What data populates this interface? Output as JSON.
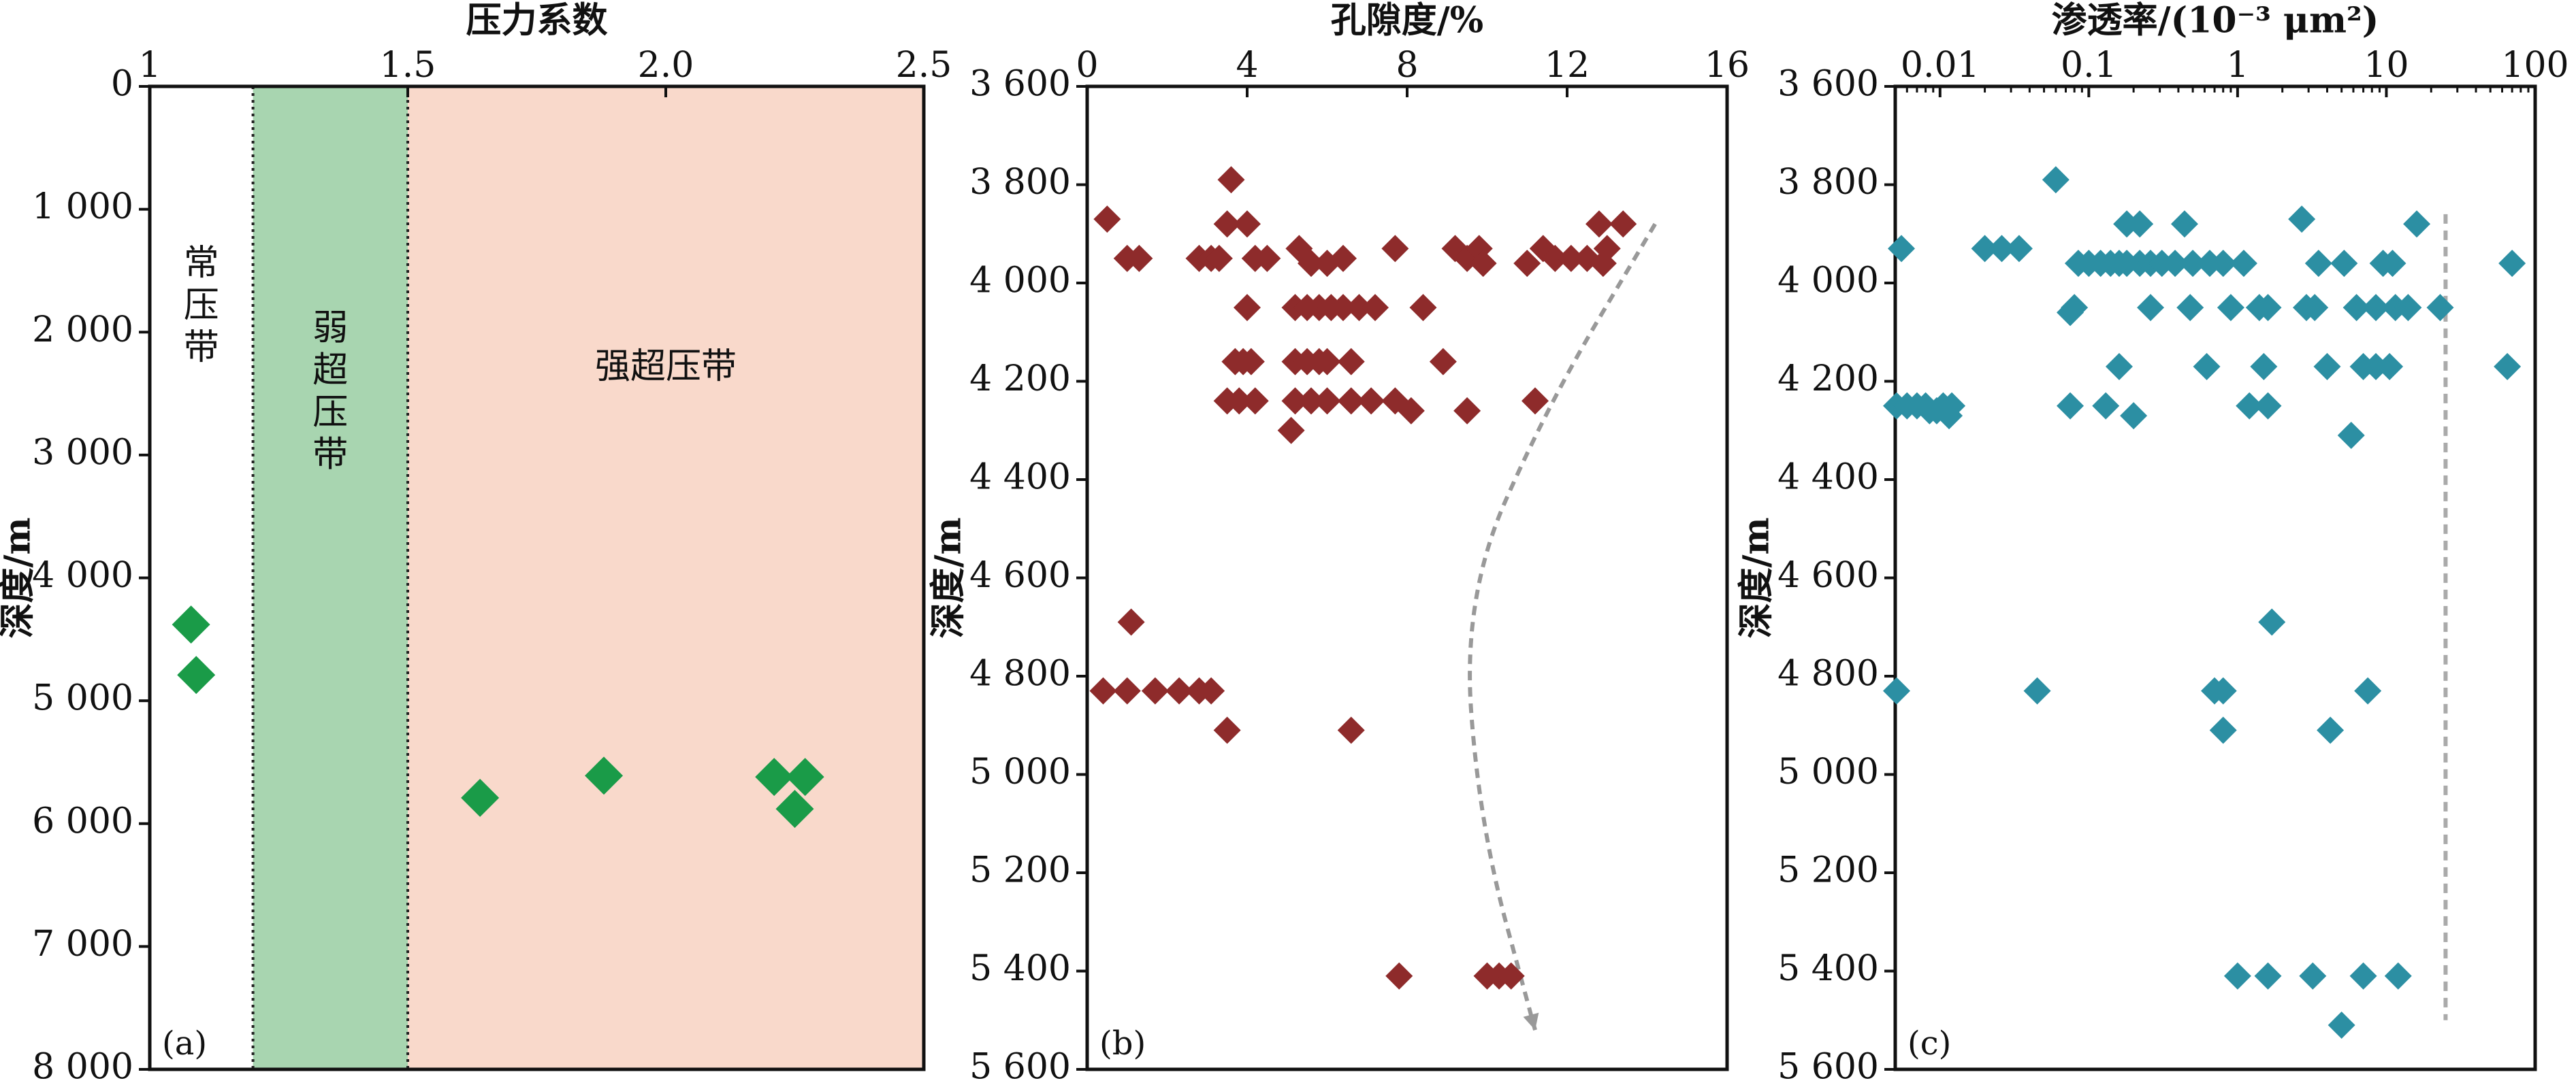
{
  "chart_data": [
    {
      "panel": "(a)",
      "type": "scatter",
      "title": "压力系数",
      "xlabel": "压力系数",
      "ylabel": "深度/m",
      "xlim": [
        1,
        2.5
      ],
      "ylim": [
        0,
        8000
      ],
      "y_inverted": true,
      "x_axis_position": "top",
      "x_ticks": [
        1,
        1.5,
        2.0,
        2.5
      ],
      "x_tick_labels": [
        "1",
        "1.5",
        "2.0",
        "2.5"
      ],
      "y_ticks": [
        0,
        1000,
        2000,
        3000,
        4000,
        5000,
        6000,
        7000,
        8000
      ],
      "y_tick_labels": [
        "0",
        "1 000",
        "2 000",
        "3 000",
        "4 000",
        "5 000",
        "6 000",
        "7 000",
        "8 000"
      ],
      "zones": [
        {
          "label": "常压带",
          "x_range": [
            1.0,
            1.2
          ],
          "color": "#ffffff"
        },
        {
          "label": "弱超压带",
          "x_range": [
            1.2,
            1.5
          ],
          "color": "#a8d5b0"
        },
        {
          "label": "强超压带",
          "x_range": [
            1.5,
            2.5
          ],
          "color": "#f9d9cb"
        }
      ],
      "marker_color": "#1a9b48",
      "marker": "diamond",
      "points": [
        {
          "x": 1.08,
          "y": 4380
        },
        {
          "x": 1.09,
          "y": 4790
        },
        {
          "x": 1.64,
          "y": 5790
        },
        {
          "x": 1.88,
          "y": 5610
        },
        {
          "x": 2.21,
          "y": 5620
        },
        {
          "x": 2.27,
          "y": 5620
        },
        {
          "x": 2.25,
          "y": 5880
        }
      ],
      "panel_label": "(a)"
    },
    {
      "panel": "(b)",
      "type": "scatter",
      "title": "孔隙度/%",
      "xlabel": "孔隙度/%",
      "ylabel": "深度/m",
      "xlim": [
        0,
        16
      ],
      "ylim": [
        3600,
        5600
      ],
      "y_inverted": true,
      "x_axis_position": "top",
      "x_ticks": [
        0,
        4,
        8,
        12,
        16
      ],
      "x_tick_labels": [
        "0",
        "4",
        "8",
        "12",
        "16"
      ],
      "y_ticks": [
        3600,
        3800,
        4000,
        4200,
        4400,
        4600,
        4800,
        5000,
        5200,
        5400,
        5600
      ],
      "y_tick_labels": [
        "3 600",
        "3 800",
        "4 000",
        "4 200",
        "4 400",
        "4 600",
        "4 800",
        "5 000",
        "5 200",
        "5 400",
        "5 600"
      ],
      "marker_color": "#8e2b2b",
      "marker": "diamond",
      "trend_line": {
        "style": "dashed-arrow",
        "color": "#999999",
        "points": [
          [
            14.2,
            3880
          ],
          [
            11.5,
            4250
          ],
          [
            9.4,
            4640
          ],
          [
            9.8,
            5100
          ],
          [
            11.2,
            5520
          ]
        ]
      },
      "points": [
        {
          "x": 0.5,
          "y": 3870
        },
        {
          "x": 1.0,
          "y": 3950
        },
        {
          "x": 1.3,
          "y": 3950
        },
        {
          "x": 2.8,
          "y": 3950
        },
        {
          "x": 3.1,
          "y": 3950
        },
        {
          "x": 3.3,
          "y": 3950
        },
        {
          "x": 3.6,
          "y": 3790
        },
        {
          "x": 3.5,
          "y": 3880
        },
        {
          "x": 4.0,
          "y": 3880
        },
        {
          "x": 4.2,
          "y": 3950
        },
        {
          "x": 4.5,
          "y": 3950
        },
        {
          "x": 5.3,
          "y": 3930
        },
        {
          "x": 5.6,
          "y": 3960
        },
        {
          "x": 6.0,
          "y": 3960
        },
        {
          "x": 6.4,
          "y": 3950
        },
        {
          "x": 7.7,
          "y": 3930
        },
        {
          "x": 9.2,
          "y": 3930
        },
        {
          "x": 9.5,
          "y": 3950
        },
        {
          "x": 9.8,
          "y": 3930
        },
        {
          "x": 9.9,
          "y": 3960
        },
        {
          "x": 11.0,
          "y": 3960
        },
        {
          "x": 11.4,
          "y": 3930
        },
        {
          "x": 11.7,
          "y": 3950
        },
        {
          "x": 12.1,
          "y": 3950
        },
        {
          "x": 12.5,
          "y": 3950
        },
        {
          "x": 12.9,
          "y": 3960
        },
        {
          "x": 12.8,
          "y": 3880
        },
        {
          "x": 13.0,
          "y": 3930
        },
        {
          "x": 13.4,
          "y": 3880
        },
        {
          "x": 4.0,
          "y": 4050
        },
        {
          "x": 5.2,
          "y": 4050
        },
        {
          "x": 5.5,
          "y": 4050
        },
        {
          "x": 5.8,
          "y": 4050
        },
        {
          "x": 6.1,
          "y": 4050
        },
        {
          "x": 6.4,
          "y": 4050
        },
        {
          "x": 6.8,
          "y": 4050
        },
        {
          "x": 7.2,
          "y": 4050
        },
        {
          "x": 8.4,
          "y": 4050
        },
        {
          "x": 3.7,
          "y": 4160
        },
        {
          "x": 3.9,
          "y": 4160
        },
        {
          "x": 4.1,
          "y": 4160
        },
        {
          "x": 5.2,
          "y": 4160
        },
        {
          "x": 5.5,
          "y": 4160
        },
        {
          "x": 5.8,
          "y": 4160
        },
        {
          "x": 6.0,
          "y": 4160
        },
        {
          "x": 6.6,
          "y": 4160
        },
        {
          "x": 8.9,
          "y": 4160
        },
        {
          "x": 3.5,
          "y": 4240
        },
        {
          "x": 3.8,
          "y": 4240
        },
        {
          "x": 4.2,
          "y": 4240
        },
        {
          "x": 5.2,
          "y": 4240
        },
        {
          "x": 5.6,
          "y": 4240
        },
        {
          "x": 6.0,
          "y": 4240
        },
        {
          "x": 6.6,
          "y": 4240
        },
        {
          "x": 7.1,
          "y": 4240
        },
        {
          "x": 7.7,
          "y": 4240
        },
        {
          "x": 8.1,
          "y": 4260
        },
        {
          "x": 9.5,
          "y": 4260
        },
        {
          "x": 11.2,
          "y": 4240
        },
        {
          "x": 5.1,
          "y": 4300
        },
        {
          "x": 1.1,
          "y": 4690
        },
        {
          "x": 0.4,
          "y": 4830
        },
        {
          "x": 1.0,
          "y": 4830
        },
        {
          "x": 1.7,
          "y": 4830
        },
        {
          "x": 2.3,
          "y": 4830
        },
        {
          "x": 2.8,
          "y": 4830
        },
        {
          "x": 3.1,
          "y": 4830
        },
        {
          "x": 3.5,
          "y": 4910
        },
        {
          "x": 6.6,
          "y": 4910
        },
        {
          "x": 7.8,
          "y": 5410
        },
        {
          "x": 10.0,
          "y": 5410
        },
        {
          "x": 10.3,
          "y": 5410
        },
        {
          "x": 10.6,
          "y": 5410
        }
      ],
      "panel_label": "(b)"
    },
    {
      "panel": "(c)",
      "type": "scatter",
      "title": "渗透率/(10⁻³ μm²)",
      "xlabel": "渗透率/(10⁻³ μm²)",
      "ylabel": "深度/m",
      "x_scale": "log",
      "xlim": [
        0.005,
        100
      ],
      "ylim": [
        3600,
        5600
      ],
      "y_inverted": true,
      "x_axis_position": "top",
      "x_ticks": [
        0.01,
        0.1,
        1,
        10,
        100
      ],
      "x_tick_labels": [
        "0.01",
        "0.1",
        "1",
        "10",
        "100"
      ],
      "y_ticks": [
        3600,
        3800,
        4000,
        4200,
        4400,
        4600,
        4800,
        5000,
        5200,
        5400,
        5600
      ],
      "y_tick_labels": [
        "3 600",
        "3 800",
        "4 000",
        "4 200",
        "4 400",
        "4 600",
        "4 800",
        "5 000",
        "5 200",
        "5 400",
        "5 600"
      ],
      "marker_color": "#2c8fa3",
      "marker": "diamond",
      "reference_line": {
        "style": "dashed",
        "color": "#aaaaaa",
        "x": 25,
        "y_range": [
          3860,
          5500
        ]
      },
      "points": [
        {
          "x": 0.0055,
          "y": 3930
        },
        {
          "x": 0.02,
          "y": 3930
        },
        {
          "x": 0.026,
          "y": 3930
        },
        {
          "x": 0.034,
          "y": 3930
        },
        {
          "x": 0.06,
          "y": 3790
        },
        {
          "x": 0.18,
          "y": 3880
        },
        {
          "x": 0.22,
          "y": 3880
        },
        {
          "x": 0.44,
          "y": 3880
        },
        {
          "x": 2.7,
          "y": 3870
        },
        {
          "x": 16,
          "y": 3880
        },
        {
          "x": 0.085,
          "y": 3960
        },
        {
          "x": 0.1,
          "y": 3960
        },
        {
          "x": 0.12,
          "y": 3960
        },
        {
          "x": 0.14,
          "y": 3960
        },
        {
          "x": 0.16,
          "y": 3960
        },
        {
          "x": 0.18,
          "y": 3960
        },
        {
          "x": 0.22,
          "y": 3960
        },
        {
          "x": 0.26,
          "y": 3960
        },
        {
          "x": 0.31,
          "y": 3960
        },
        {
          "x": 0.38,
          "y": 3960
        },
        {
          "x": 0.5,
          "y": 3960
        },
        {
          "x": 0.65,
          "y": 3960
        },
        {
          "x": 0.8,
          "y": 3960
        },
        {
          "x": 1.1,
          "y": 3960
        },
        {
          "x": 3.5,
          "y": 3960
        },
        {
          "x": 5.2,
          "y": 3960
        },
        {
          "x": 9.5,
          "y": 3960
        },
        {
          "x": 11,
          "y": 3960
        },
        {
          "x": 70,
          "y": 3960
        },
        {
          "x": 0.075,
          "y": 4060
        },
        {
          "x": 0.08,
          "y": 4050
        },
        {
          "x": 0.26,
          "y": 4050
        },
        {
          "x": 0.48,
          "y": 4050
        },
        {
          "x": 0.9,
          "y": 4050
        },
        {
          "x": 1.4,
          "y": 4050
        },
        {
          "x": 1.6,
          "y": 4050
        },
        {
          "x": 2.9,
          "y": 4050
        },
        {
          "x": 3.3,
          "y": 4050
        },
        {
          "x": 6.3,
          "y": 4050
        },
        {
          "x": 8.5,
          "y": 4050
        },
        {
          "x": 11.5,
          "y": 4050
        },
        {
          "x": 14,
          "y": 4050
        },
        {
          "x": 23,
          "y": 4050
        },
        {
          "x": 0.16,
          "y": 4170
        },
        {
          "x": 0.62,
          "y": 4170
        },
        {
          "x": 1.5,
          "y": 4170
        },
        {
          "x": 4.0,
          "y": 4170
        },
        {
          "x": 7.0,
          "y": 4170
        },
        {
          "x": 8.5,
          "y": 4170
        },
        {
          "x": 10.5,
          "y": 4170
        },
        {
          "x": 65,
          "y": 4170
        },
        {
          "x": 0.005,
          "y": 4250
        },
        {
          "x": 0.006,
          "y": 4250
        },
        {
          "x": 0.007,
          "y": 4250
        },
        {
          "x": 0.008,
          "y": 4250
        },
        {
          "x": 0.0085,
          "y": 4260
        },
        {
          "x": 0.0095,
          "y": 4260
        },
        {
          "x": 0.0105,
          "y": 4250
        },
        {
          "x": 0.012,
          "y": 4250
        },
        {
          "x": 0.0115,
          "y": 4270
        },
        {
          "x": 0.075,
          "y": 4250
        },
        {
          "x": 0.13,
          "y": 4250
        },
        {
          "x": 0.2,
          "y": 4270
        },
        {
          "x": 1.2,
          "y": 4250
        },
        {
          "x": 1.6,
          "y": 4250
        },
        {
          "x": 5.8,
          "y": 4310
        },
        {
          "x": 1.7,
          "y": 4690
        },
        {
          "x": 0.005,
          "y": 4830
        },
        {
          "x": 0.045,
          "y": 4830
        },
        {
          "x": 0.7,
          "y": 4830
        },
        {
          "x": 0.8,
          "y": 4830
        },
        {
          "x": 7.5,
          "y": 4830
        },
        {
          "x": 0.8,
          "y": 4910
        },
        {
          "x": 4.2,
          "y": 4910
        },
        {
          "x": 1.0,
          "y": 5410
        },
        {
          "x": 1.6,
          "y": 5410
        },
        {
          "x": 3.2,
          "y": 5410
        },
        {
          "x": 7.0,
          "y": 5410
        },
        {
          "x": 12,
          "y": 5410
        },
        {
          "x": 5.0,
          "y": 5510
        }
      ],
      "panel_label": "(c)"
    }
  ]
}
